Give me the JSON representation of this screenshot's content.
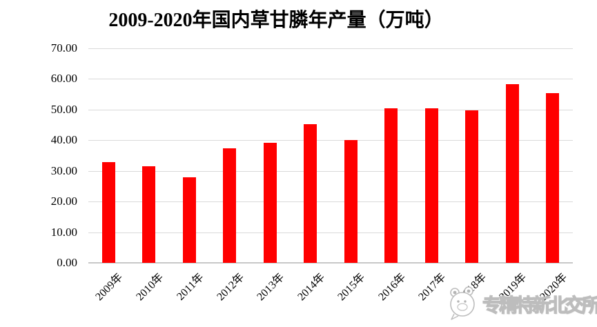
{
  "chart_data": {
    "type": "bar",
    "title": "2009-2020年国内草甘膦年产量（万吨）",
    "categories": [
      "2009年",
      "2010年",
      "2011年",
      "2012年",
      "2013年",
      "2014年",
      "2015年",
      "2016年",
      "2017年",
      "2018年",
      "2019年",
      "2020年"
    ],
    "values": [
      32.8,
      31.5,
      27.9,
      37.4,
      39.2,
      45.2,
      40.1,
      50.4,
      50.4,
      49.8,
      58.3,
      55.3
    ],
    "xlabel": "",
    "ylabel": "",
    "ylim": [
      0,
      70
    ],
    "ytick_step": 10,
    "ytick_labels": [
      "0.00",
      "10.00",
      "20.00",
      "30.00",
      "40.00",
      "50.00",
      "60.00",
      "70.00"
    ],
    "grid": true,
    "legend": false,
    "bar_color": "#ff0000",
    "gridline_color": "#d9d9d9",
    "axis_line_color": "#c8c8c8",
    "label_color": "#000000",
    "title_color": "#000000"
  },
  "watermark": {
    "icon": "wechat-mascot-face-icon",
    "text": "专精特新北交所",
    "color": "#bdbdbd"
  }
}
